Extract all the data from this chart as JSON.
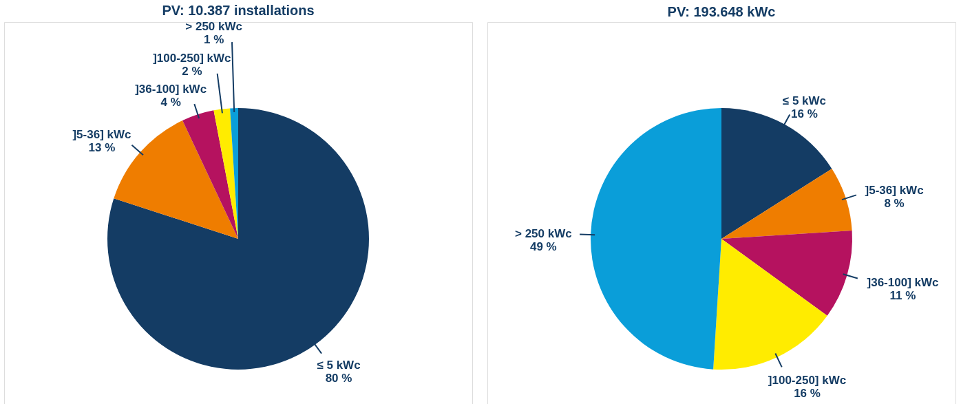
{
  "chart_data": [
    {
      "type": "pie",
      "title": "PV: 10.387 installations",
      "categories": [
        "≤ 5 kWc",
        "]5-36] kWc",
        "]36-100] kWc",
        "]100-250] kWc",
        "> 250 kWc"
      ],
      "values": [
        80,
        13,
        4,
        2,
        1
      ],
      "value_labels": [
        "80 %",
        "13 %",
        "4 %",
        "2 %",
        "1 %"
      ],
      "colors": [
        "#143c64",
        "#ef7d00",
        "#b5125f",
        "#ffec00",
        "#0a9ed9"
      ],
      "legend": false
    },
    {
      "type": "pie",
      "title": "PV: 193.648 kWc",
      "categories": [
        "≤ 5 kWc",
        "]5-36] kWc",
        "]36-100] kWc",
        "]100-250] kWc",
        "> 250 kWc"
      ],
      "values": [
        16,
        8,
        11,
        16,
        49
      ],
      "value_labels": [
        "16 %",
        "8 %",
        "11 %",
        "16 %",
        "49 %"
      ],
      "colors": [
        "#143c64",
        "#ef7d00",
        "#b5125f",
        "#ffec00",
        "#0a9ed9"
      ],
      "legend": false
    }
  ]
}
